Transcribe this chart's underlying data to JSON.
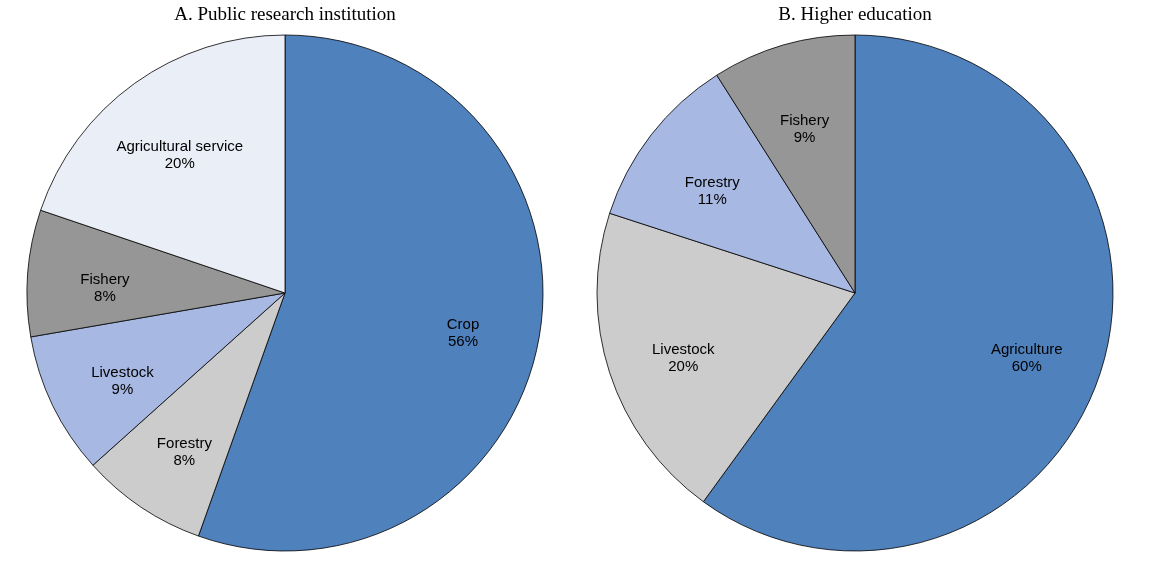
{
  "chart_data": [
    {
      "type": "pie",
      "title": "A. Public research institution",
      "categories": [
        "Crop",
        "Forestry",
        "Livestock",
        "Fishery",
        "Agricultural service"
      ],
      "values": [
        56,
        8,
        9,
        8,
        20
      ],
      "value_labels": [
        "56%",
        "8%",
        "9%",
        "8%",
        "20%"
      ],
      "colors": [
        "#4f81bd",
        "#cccccc",
        "#a7b8e2",
        "#969696",
        "#eaeef6"
      ],
      "legend": false
    },
    {
      "type": "pie",
      "title": "B. Higher education",
      "categories": [
        "Agriculture",
        "Livestock",
        "Forestry",
        "Fishery"
      ],
      "values": [
        60,
        20,
        11,
        9
      ],
      "value_labels": [
        "60%",
        "20%",
        "11%",
        "9%"
      ],
      "colors": [
        "#4f81bd",
        "#cccccc",
        "#a7b8e2",
        "#969696"
      ],
      "legend": false
    }
  ]
}
